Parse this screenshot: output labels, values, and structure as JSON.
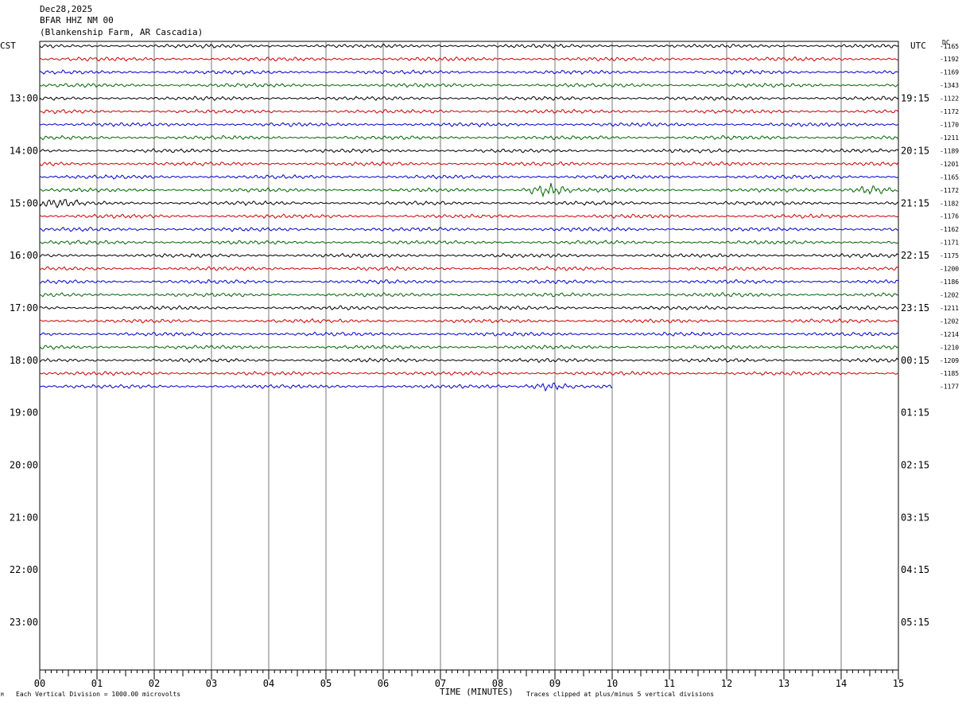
{
  "header": {
    "date": "Dec28,2025",
    "station": "BFAR HHZ NM 00",
    "location": "(Blankenship Farm, AR Cascadia)"
  },
  "left_timezone": "CST",
  "right_timezone": "UTC",
  "dc_label": "DC",
  "chart_data": {
    "type": "line",
    "title": "",
    "xlabel": "TIME (MINUTES)",
    "x_tick_labels": [
      "00",
      "01",
      "02",
      "03",
      "04",
      "05",
      "06",
      "07",
      "08",
      "09",
      "10",
      "11",
      "12",
      "13",
      "14",
      "15"
    ],
    "xlim": [
      0,
      15
    ],
    "left_hour_labels": [
      "13:00",
      "14:00",
      "15:00",
      "16:00",
      "17:00",
      "18:00",
      "19:00",
      "20:00",
      "21:00",
      "22:00",
      "23:00"
    ],
    "right_hour_labels": [
      "19:15",
      "20:15",
      "21:15",
      "22:15",
      "23:15",
      "00:15",
      "01:15",
      "02:15",
      "03:15",
      "04:15",
      "05:15"
    ],
    "first_labeled_row": 4,
    "rows_per_hour": 4,
    "total_rows": 48,
    "trace_colors": [
      "#000000",
      "#cc0000",
      "#0000cc",
      "#006600"
    ],
    "dc_offsets": [
      -1165,
      -1192,
      -1169,
      -1343,
      -1122,
      -1172,
      -1170,
      -1211,
      -1189,
      -1201,
      -1165,
      -1172,
      -1182,
      -1176,
      -1162,
      -1171,
      -1175,
      -1200,
      -1186,
      -1202,
      -1211,
      -1202,
      -1214,
      -1210,
      -1209,
      -1185,
      -1177
    ],
    "last_trace_end_minute": 10,
    "events": [
      {
        "row": 11,
        "minute": 8.85,
        "strength": 2.4
      },
      {
        "row": 11,
        "minute": 14.5,
        "strength": 1.6
      },
      {
        "row": 12,
        "minute": 0.3,
        "strength": 1.5
      },
      {
        "row": 26,
        "minute": 8.9,
        "strength": 1.5
      }
    ]
  },
  "footer": {
    "left_note": "Each Vertical Division = 1000.00 microvolts",
    "right_note": "Traces clipped at plus/minus 5 vertical divisions",
    "corner_mark": "M"
  }
}
